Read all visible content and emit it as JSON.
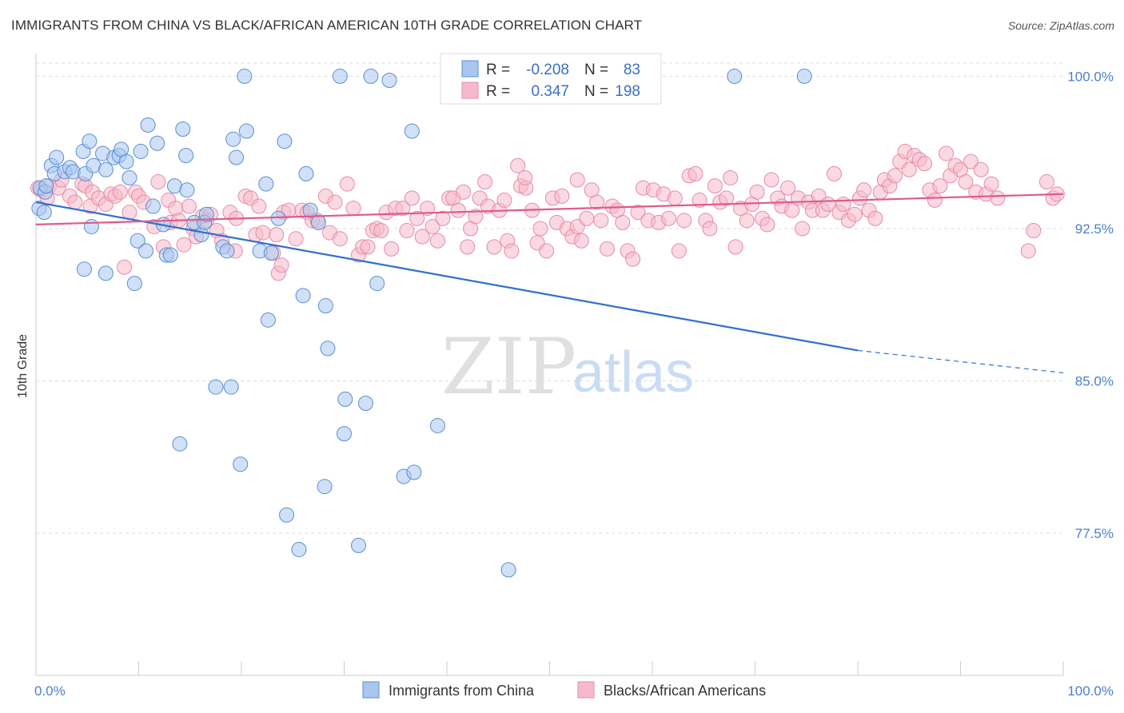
{
  "title": "IMMIGRANTS FROM CHINA VS BLACK/AFRICAN AMERICAN 10TH GRADE CORRELATION CHART",
  "source": "Source: ZipAtlas.com",
  "watermark": {
    "zip": "ZIP",
    "atlas": "atlas"
  },
  "colors": {
    "blue_fill": "#a9c6ef",
    "blue_stroke": "#5a8fd6",
    "blue_line": "#2f6fd0",
    "pink_fill": "#f6b9cb",
    "pink_stroke": "#e88aa8",
    "pink_line": "#e05a8a",
    "tick_label": "#4a7fd0",
    "grid": "#dddddd"
  },
  "legend": {
    "rows": [
      {
        "r_label": "R =",
        "r_value": "-0.208",
        "n_label": "N =",
        "n_value": "83",
        "color": "blue"
      },
      {
        "r_label": "R =",
        "r_value": "0.347",
        "n_label": "N =",
        "n_value": "198",
        "color": "pink"
      }
    ]
  },
  "bottom_legend": [
    {
      "label": "Immigrants from China",
      "color": "blue"
    },
    {
      "label": "Blacks/African Americans",
      "color": "pink"
    }
  ],
  "chart_data": {
    "type": "scatter",
    "xlabel": "",
    "ylabel": "10th Grade",
    "xlim": [
      0,
      100
    ],
    "ylim": [
      70.5,
      101
    ],
    "x_tick_labels": [
      "0.0%",
      "100.0%"
    ],
    "y_ticks": [
      {
        "value": 100.0,
        "label": "100.0%"
      },
      {
        "value": 92.5,
        "label": "92.5%"
      },
      {
        "value": 85.0,
        "label": "85.0%"
      },
      {
        "value": 77.5,
        "label": "77.5%"
      }
    ],
    "grid": true,
    "series": [
      {
        "name": "Immigrants from China",
        "color": "blue",
        "trend": {
          "x0": 0,
          "y0": 93.8,
          "x1": 80,
          "y1": 86.5,
          "dashed_to_x": 100,
          "dashed_to_y": 85.4
        },
        "points": [
          [
            0.3,
            93.5
          ],
          [
            0.4,
            94.5
          ],
          [
            0.8,
            93.3
          ],
          [
            0.9,
            94.3
          ],
          [
            1.0,
            94.6
          ],
          [
            1.5,
            95.6
          ],
          [
            1.8,
            95.2
          ],
          [
            2.0,
            96.0
          ],
          [
            2.8,
            95.3
          ],
          [
            3.3,
            95.5
          ],
          [
            3.6,
            95.3
          ],
          [
            4.6,
            96.3
          ],
          [
            4.8,
            95.2
          ],
          [
            5.2,
            96.8
          ],
          [
            5.4,
            92.6
          ],
          [
            5.6,
            95.6
          ],
          [
            6.5,
            96.2
          ],
          [
            6.8,
            95.4
          ],
          [
            7.6,
            96.0
          ],
          [
            8.1,
            96.1
          ],
          [
            8.3,
            96.4
          ],
          [
            8.8,
            95.8
          ],
          [
            9.1,
            95.0
          ],
          [
            9.9,
            91.9
          ],
          [
            10.2,
            96.3
          ],
          [
            10.7,
            91.4
          ],
          [
            10.9,
            97.6
          ],
          [
            11.4,
            93.6
          ],
          [
            11.8,
            96.7
          ],
          [
            12.4,
            92.7
          ],
          [
            12.7,
            91.2
          ],
          [
            13.1,
            91.2
          ],
          [
            13.5,
            94.6
          ],
          [
            14.3,
            97.4
          ],
          [
            14.6,
            96.1
          ],
          [
            14.7,
            94.4
          ],
          [
            15.4,
            92.8
          ],
          [
            16.1,
            92.2
          ],
          [
            16.4,
            92.8
          ],
          [
            16.6,
            93.2
          ],
          [
            18.2,
            91.6
          ],
          [
            18.6,
            91.4
          ],
          [
            19.2,
            96.9
          ],
          [
            19.5,
            96.0
          ],
          [
            20.5,
            97.3
          ],
          [
            21.8,
            91.4
          ],
          [
            22.4,
            94.7
          ],
          [
            22.9,
            91.3
          ],
          [
            23.6,
            93.0
          ],
          [
            24.2,
            96.8
          ],
          [
            26.3,
            95.2
          ],
          [
            26.7,
            93.4
          ],
          [
            27.5,
            92.8
          ],
          [
            4.7,
            90.5
          ],
          [
            6.8,
            90.3
          ],
          [
            9.6,
            89.8
          ],
          [
            26.0,
            89.2
          ],
          [
            28.2,
            88.7
          ],
          [
            22.6,
            88.0
          ],
          [
            28.4,
            86.6
          ],
          [
            17.5,
            84.7
          ],
          [
            19.0,
            84.7
          ],
          [
            30.1,
            84.1
          ],
          [
            32.1,
            83.9
          ],
          [
            30.0,
            82.4
          ],
          [
            39.1,
            82.8
          ],
          [
            14.0,
            81.9
          ],
          [
            19.9,
            80.9
          ],
          [
            35.8,
            80.3
          ],
          [
            36.8,
            80.5
          ],
          [
            28.1,
            79.8
          ],
          [
            24.4,
            78.4
          ],
          [
            25.6,
            76.7
          ],
          [
            31.4,
            76.9
          ],
          [
            46.0,
            75.7
          ],
          [
            33.2,
            89.8
          ],
          [
            20.3,
            100.0
          ],
          [
            29.6,
            100.0
          ],
          [
            32.6,
            100.0
          ],
          [
            34.4,
            99.8
          ],
          [
            68.0,
            100.0
          ],
          [
            74.8,
            100.0
          ],
          [
            36.6,
            97.3
          ]
        ]
      },
      {
        "name": "Blacks/African Americans",
        "color": "pink",
        "trend": {
          "x0": 0,
          "y0": 92.7,
          "x1": 100,
          "y1": 94.2
        },
        "points": [
          [
            0.5,
            94.4
          ],
          [
            1.1,
            94.0
          ],
          [
            1.3,
            94.6
          ],
          [
            2.2,
            94.5
          ],
          [
            2.5,
            94.9
          ],
          [
            3.3,
            94.1
          ],
          [
            3.8,
            93.8
          ],
          [
            4.5,
            94.7
          ],
          [
            4.8,
            94.6
          ],
          [
            5.3,
            93.6
          ],
          [
            5.5,
            94.3
          ],
          [
            6.1,
            94.0
          ],
          [
            6.8,
            93.7
          ],
          [
            7.3,
            94.2
          ],
          [
            7.7,
            94.1
          ],
          [
            8.2,
            94.3
          ],
          [
            8.6,
            90.6
          ],
          [
            9.1,
            93.3
          ],
          [
            9.7,
            94.3
          ],
          [
            10.0,
            94.1
          ],
          [
            10.5,
            93.8
          ],
          [
            11.5,
            92.6
          ],
          [
            11.9,
            94.8
          ],
          [
            12.4,
            91.6
          ],
          [
            12.9,
            93.9
          ],
          [
            13.1,
            92.8
          ],
          [
            13.6,
            93.5
          ],
          [
            13.9,
            92.9
          ],
          [
            14.4,
            91.7
          ],
          [
            14.9,
            93.6
          ],
          [
            15.3,
            92.5
          ],
          [
            15.6,
            92.1
          ],
          [
            16.2,
            93.1
          ],
          [
            16.6,
            92.9
          ],
          [
            17.0,
            93.2
          ],
          [
            17.6,
            92.4
          ],
          [
            18.1,
            91.9
          ],
          [
            18.9,
            93.3
          ],
          [
            19.4,
            91.4
          ],
          [
            19.5,
            93.0
          ],
          [
            20.4,
            94.1
          ],
          [
            20.9,
            94.0
          ],
          [
            21.4,
            92.2
          ],
          [
            21.7,
            93.6
          ],
          [
            22.1,
            92.3
          ],
          [
            23.1,
            91.3
          ],
          [
            23.4,
            92.2
          ],
          [
            23.6,
            90.3
          ],
          [
            23.9,
            90.7
          ],
          [
            24.1,
            93.3
          ],
          [
            24.6,
            93.4
          ],
          [
            25.3,
            92.0
          ],
          [
            25.9,
            93.4
          ],
          [
            26.4,
            93.3
          ],
          [
            26.9,
            92.9
          ],
          [
            27.4,
            92.9
          ],
          [
            28.2,
            94.1
          ],
          [
            28.6,
            92.3
          ],
          [
            29.1,
            93.8
          ],
          [
            29.6,
            92.0
          ],
          [
            30.3,
            94.7
          ],
          [
            30.9,
            93.5
          ],
          [
            31.4,
            91.2
          ],
          [
            31.8,
            91.6
          ],
          [
            32.3,
            91.6
          ],
          [
            32.8,
            92.4
          ],
          [
            33.2,
            92.5
          ],
          [
            33.6,
            92.4
          ],
          [
            34.1,
            93.3
          ],
          [
            34.6,
            91.5
          ],
          [
            35.0,
            93.5
          ],
          [
            35.7,
            93.5
          ],
          [
            36.1,
            92.4
          ],
          [
            36.6,
            94.0
          ],
          [
            37.1,
            93.0
          ],
          [
            37.6,
            92.1
          ],
          [
            38.1,
            93.5
          ],
          [
            38.6,
            92.6
          ],
          [
            39.1,
            91.9
          ],
          [
            39.6,
            93.0
          ],
          [
            40.2,
            94.0
          ],
          [
            40.6,
            94.0
          ],
          [
            41.1,
            93.4
          ],
          [
            41.6,
            94.3
          ],
          [
            42.0,
            91.6
          ],
          [
            42.3,
            92.5
          ],
          [
            42.8,
            93.1
          ],
          [
            43.2,
            94.0
          ],
          [
            43.7,
            94.8
          ],
          [
            44.0,
            93.6
          ],
          [
            44.6,
            91.6
          ],
          [
            45.1,
            93.4
          ],
          [
            45.6,
            93.9
          ],
          [
            45.9,
            91.9
          ],
          [
            46.3,
            91.4
          ],
          [
            46.9,
            95.6
          ],
          [
            47.2,
            94.6
          ],
          [
            47.7,
            94.5
          ],
          [
            48.3,
            93.4
          ],
          [
            48.8,
            91.8
          ],
          [
            49.1,
            92.5
          ],
          [
            49.7,
            91.4
          ],
          [
            50.3,
            94.0
          ],
          [
            50.7,
            92.8
          ],
          [
            51.2,
            94.1
          ],
          [
            51.7,
            92.5
          ],
          [
            52.2,
            92.1
          ],
          [
            52.7,
            92.6
          ],
          [
            53.1,
            91.9
          ],
          [
            53.6,
            93.0
          ],
          [
            54.1,
            94.4
          ],
          [
            54.6,
            93.8
          ],
          [
            55.0,
            92.9
          ],
          [
            55.6,
            91.5
          ],
          [
            56.1,
            93.6
          ],
          [
            56.6,
            93.4
          ],
          [
            57.1,
            92.8
          ],
          [
            57.6,
            91.4
          ],
          [
            58.1,
            91.0
          ],
          [
            58.6,
            93.3
          ],
          [
            59.1,
            94.5
          ],
          [
            59.6,
            92.9
          ],
          [
            60.1,
            94.4
          ],
          [
            60.6,
            92.8
          ],
          [
            61.1,
            94.2
          ],
          [
            61.6,
            93.0
          ],
          [
            62.2,
            94.0
          ],
          [
            62.6,
            91.4
          ],
          [
            63.1,
            92.9
          ],
          [
            63.6,
            95.1
          ],
          [
            64.2,
            95.2
          ],
          [
            64.6,
            93.9
          ],
          [
            65.2,
            92.9
          ],
          [
            65.6,
            92.5
          ],
          [
            66.1,
            94.6
          ],
          [
            66.6,
            93.8
          ],
          [
            67.2,
            94.0
          ],
          [
            67.6,
            95.0
          ],
          [
            68.1,
            91.6
          ],
          [
            68.6,
            93.5
          ],
          [
            69.2,
            92.9
          ],
          [
            69.7,
            93.7
          ],
          [
            70.2,
            94.3
          ],
          [
            70.7,
            93.0
          ],
          [
            71.2,
            92.7
          ],
          [
            71.6,
            94.9
          ],
          [
            72.2,
            94.0
          ],
          [
            72.6,
            93.6
          ],
          [
            73.2,
            94.5
          ],
          [
            73.6,
            93.4
          ],
          [
            74.2,
            94.0
          ],
          [
            74.6,
            92.5
          ],
          [
            75.2,
            93.8
          ],
          [
            75.6,
            93.4
          ],
          [
            76.2,
            94.1
          ],
          [
            76.6,
            93.4
          ],
          [
            77.1,
            93.7
          ],
          [
            77.7,
            95.2
          ],
          [
            78.2,
            93.3
          ],
          [
            78.6,
            93.7
          ],
          [
            79.1,
            92.9
          ],
          [
            79.7,
            93.2
          ],
          [
            80.2,
            94.0
          ],
          [
            80.6,
            94.4
          ],
          [
            81.1,
            93.4
          ],
          [
            81.7,
            93.0
          ],
          [
            82.2,
            94.3
          ],
          [
            82.6,
            94.9
          ],
          [
            83.1,
            94.6
          ],
          [
            83.6,
            95.1
          ],
          [
            84.1,
            95.8
          ],
          [
            84.6,
            96.3
          ],
          [
            85.0,
            95.4
          ],
          [
            85.5,
            96.1
          ],
          [
            86.0,
            95.9
          ],
          [
            86.5,
            95.7
          ],
          [
            87.0,
            94.4
          ],
          [
            87.5,
            93.9
          ],
          [
            88.0,
            94.6
          ],
          [
            88.6,
            96.2
          ],
          [
            89.0,
            95.1
          ],
          [
            89.5,
            95.6
          ],
          [
            90.0,
            95.4
          ],
          [
            90.5,
            94.8
          ],
          [
            91.0,
            95.8
          ],
          [
            91.5,
            94.3
          ],
          [
            92.0,
            95.4
          ],
          [
            92.5,
            94.2
          ],
          [
            93.0,
            94.7
          ],
          [
            93.6,
            94.0
          ],
          [
            99.0,
            94.0
          ],
          [
            99.4,
            94.2
          ],
          [
            98.4,
            94.8
          ],
          [
            97.1,
            92.4
          ],
          [
            96.6,
            91.4
          ],
          [
            0.2,
            94.5
          ],
          [
            52.7,
            94.9
          ],
          [
            47.6,
            95.0
          ]
        ]
      }
    ]
  }
}
